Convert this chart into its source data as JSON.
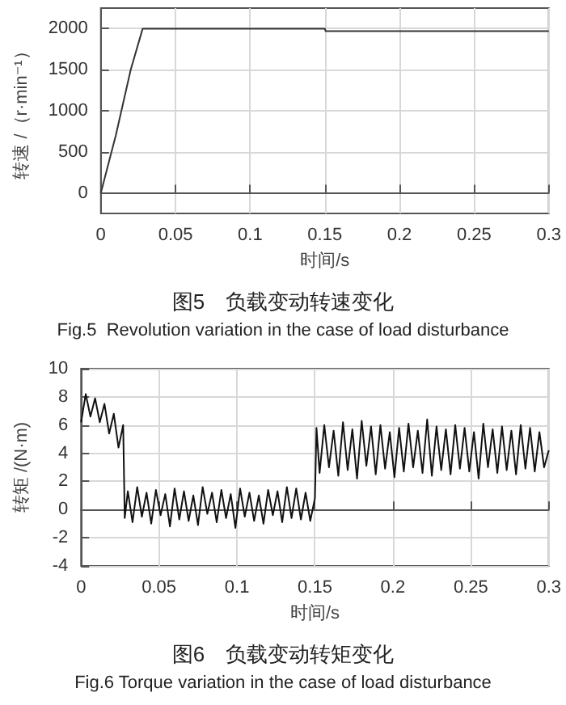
{
  "chart_data": [
    {
      "type": "line",
      "title": "图5　负载变动转速变化",
      "subtitle": "Fig.5  Revolution variation in the case of load disturbance",
      "xlabel": "时间/s",
      "ylabel": "转速 /（r·min⁻¹）",
      "xlim": [
        0,
        0.3
      ],
      "xticks": [
        0,
        0.05,
        0.1,
        0.15,
        0.2,
        0.25,
        0.3
      ],
      "ylim": [
        -250,
        2250
      ],
      "yticks": [
        0,
        500,
        1000,
        1500,
        2000
      ],
      "grid": true,
      "series": [
        {
          "color": "#333333",
          "x": [
            0,
            0.01,
            0.02,
            0.028,
            0.15,
            0.1505,
            0.3
          ],
          "values": [
            0,
            700,
            1500,
            2000,
            2000,
            1970,
            1970
          ]
        }
      ]
    },
    {
      "type": "line",
      "title": "图6　负载变动转矩变化",
      "subtitle": "Fig.6 Torque variation in the case of load disturbance",
      "xlabel": "时间/s",
      "ylabel": "转矩 /(N·m)",
      "xlim": [
        0,
        0.3
      ],
      "xticks": [
        0,
        0.05,
        0.1,
        0.15,
        0.2,
        0.25,
        0.3
      ],
      "ylim": [
        -4,
        10
      ],
      "yticks": [
        -4,
        -2,
        0,
        2,
        4,
        6,
        8,
        10
      ],
      "grid": true,
      "series": [
        {
          "color": "#111111",
          "x": [
            0,
            0.003,
            0.006,
            0.009,
            0.012,
            0.015,
            0.018,
            0.021,
            0.024,
            0.027,
            0.028,
            0.03,
            0.033,
            0.036,
            0.039,
            0.042,
            0.045,
            0.048,
            0.051,
            0.054,
            0.057,
            0.06,
            0.063,
            0.066,
            0.069,
            0.072,
            0.075,
            0.078,
            0.081,
            0.084,
            0.087,
            0.09,
            0.093,
            0.096,
            0.099,
            0.102,
            0.105,
            0.108,
            0.111,
            0.114,
            0.117,
            0.12,
            0.123,
            0.126,
            0.129,
            0.132,
            0.135,
            0.138,
            0.141,
            0.144,
            0.147,
            0.15,
            0.151,
            0.153,
            0.156,
            0.159,
            0.162,
            0.165,
            0.168,
            0.171,
            0.174,
            0.177,
            0.18,
            0.183,
            0.186,
            0.189,
            0.192,
            0.195,
            0.198,
            0.201,
            0.204,
            0.207,
            0.21,
            0.213,
            0.216,
            0.219,
            0.222,
            0.225,
            0.228,
            0.231,
            0.234,
            0.237,
            0.24,
            0.243,
            0.246,
            0.249,
            0.252,
            0.255,
            0.258,
            0.261,
            0.264,
            0.267,
            0.27,
            0.273,
            0.276,
            0.279,
            0.282,
            0.285,
            0.288,
            0.291,
            0.294,
            0.297,
            0.3
          ],
          "values": [
            6.2,
            8.2,
            6.6,
            7.9,
            6.2,
            7.5,
            5.4,
            6.8,
            4.4,
            6.0,
            -0.6,
            1.3,
            -0.9,
            1.6,
            -0.5,
            1.2,
            -1.0,
            1.4,
            -0.4,
            1.1,
            -1.2,
            1.5,
            -0.7,
            1.3,
            -0.8,
            1.0,
            -1.1,
            1.6,
            -0.3,
            1.2,
            -0.9,
            1.4,
            -0.6,
            1.1,
            -1.3,
            1.5,
            -0.5,
            1.2,
            -0.8,
            1.0,
            -1.0,
            1.4,
            -0.4,
            1.3,
            -0.9,
            1.6,
            -0.6,
            1.5,
            -0.7,
            1.2,
            -0.8,
            0.8,
            5.8,
            2.6,
            6.0,
            3.0,
            5.6,
            2.4,
            6.2,
            2.8,
            5.7,
            2.2,
            6.3,
            3.1,
            5.9,
            2.5,
            6.0,
            2.9,
            5.5,
            2.3,
            5.8,
            2.7,
            6.1,
            3.0,
            5.6,
            2.6,
            6.4,
            2.4,
            5.9,
            2.8,
            5.7,
            2.5,
            6.0,
            2.9,
            5.8,
            2.7,
            5.5,
            2.2,
            6.1,
            3.0,
            5.7,
            2.6,
            5.9,
            2.8,
            5.6,
            2.5,
            6.0,
            2.9,
            5.8,
            2.7,
            5.5,
            3.0,
            4.2
          ]
        }
      ]
    }
  ]
}
